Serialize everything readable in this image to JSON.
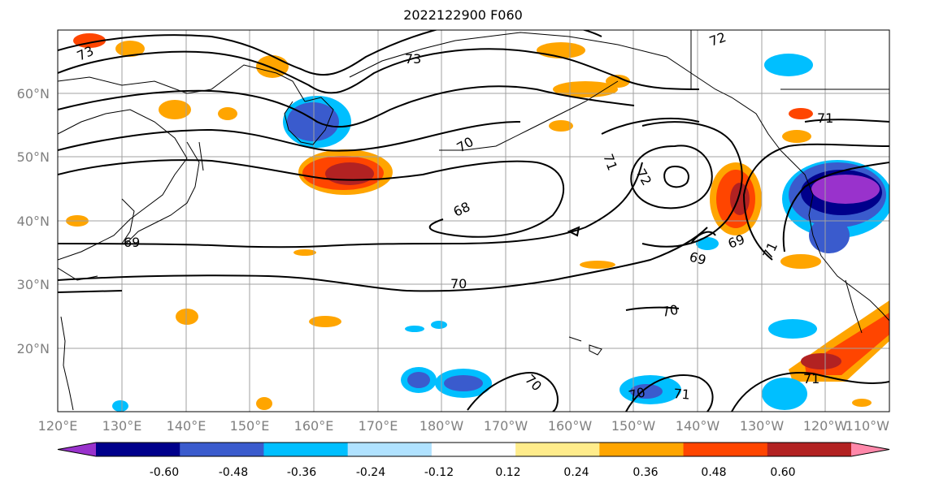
{
  "title": "2022122900 F060",
  "map": {
    "lat_ticks": [
      "60°N",
      "50°N",
      "40°N",
      "30°N",
      "20°N"
    ],
    "lon_ticks": [
      "120°E",
      "130°E",
      "140°E",
      "150°E",
      "160°E",
      "170°E",
      "180°W",
      "170°W",
      "160°W",
      "150°W",
      "140°W",
      "130°W",
      "120°W",
      "110°W"
    ],
    "extent": {
      "lon_min": 120,
      "lon_max": 250,
      "lat_min": 10,
      "lat_max": 70
    },
    "contour_labels": [
      "73",
      "73",
      "72",
      "71",
      "70",
      "70",
      "71",
      "72",
      "68",
      "69",
      "69",
      "69",
      "71",
      "70",
      "70",
      "70",
      "70",
      "71",
      "71"
    ]
  },
  "colorbar": {
    "labels": [
      "-0.60",
      "-0.48",
      "-0.36",
      "-0.24",
      "-0.12",
      "0.12",
      "0.24",
      "0.36",
      "0.48",
      "0.60"
    ],
    "colors": [
      "#9932cc",
      "#00008b",
      "#3a5bcd",
      "#00bfff",
      "#b0e2ff",
      "#ffffff",
      "#ffec8b",
      "#ffa500",
      "#ff4500",
      "#b22222",
      "#ff88aa"
    ]
  }
}
